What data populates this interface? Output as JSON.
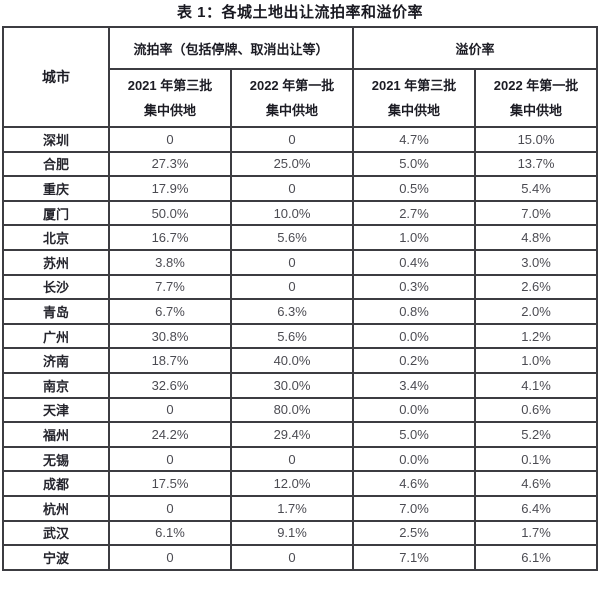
{
  "title": "表 1：各城土地出让流拍率和溢价率",
  "colors": {
    "border": "#3c3c41",
    "header_text": "#1c1c24",
    "value_text": "#4b4b52",
    "background": "#ffffff"
  },
  "table": {
    "corner_header": "城市",
    "groups": [
      {
        "label": "流拍率（包括停牌、取消出让等）"
      },
      {
        "label": "溢价率"
      }
    ],
    "sub_headers": [
      {
        "line1": "2021 年第三批",
        "line2": "集中供地"
      },
      {
        "line1": "2022 年第一批",
        "line2": "集中供地"
      },
      {
        "line1": "2021 年第三批",
        "line2": "集中供地"
      },
      {
        "line1": "2022 年第一批",
        "line2": "集中供地"
      }
    ],
    "rows": [
      {
        "city": "深圳",
        "values": [
          "0",
          "0",
          "4.7%",
          "15.0%"
        ]
      },
      {
        "city": "合肥",
        "values": [
          "27.3%",
          "25.0%",
          "5.0%",
          "13.7%"
        ]
      },
      {
        "city": "重庆",
        "values": [
          "17.9%",
          "0",
          "0.5%",
          "5.4%"
        ]
      },
      {
        "city": "厦门",
        "values": [
          "50.0%",
          "10.0%",
          "2.7%",
          "7.0%"
        ]
      },
      {
        "city": "北京",
        "values": [
          "16.7%",
          "5.6%",
          "1.0%",
          "4.8%"
        ]
      },
      {
        "city": "苏州",
        "values": [
          "3.8%",
          "0",
          "0.4%",
          "3.0%"
        ]
      },
      {
        "city": "长沙",
        "values": [
          "7.7%",
          "0",
          "0.3%",
          "2.6%"
        ]
      },
      {
        "city": "青岛",
        "values": [
          "6.7%",
          "6.3%",
          "0.8%",
          "2.0%"
        ]
      },
      {
        "city": "广州",
        "values": [
          "30.8%",
          "5.6%",
          "0.0%",
          "1.2%"
        ]
      },
      {
        "city": "济南",
        "values": [
          "18.7%",
          "40.0%",
          "0.2%",
          "1.0%"
        ]
      },
      {
        "city": "南京",
        "values": [
          "32.6%",
          "30.0%",
          "3.4%",
          "4.1%"
        ]
      },
      {
        "city": "天津",
        "values": [
          "0",
          "80.0%",
          "0.0%",
          "0.6%"
        ]
      },
      {
        "city": "福州",
        "values": [
          "24.2%",
          "29.4%",
          "5.0%",
          "5.2%"
        ]
      },
      {
        "city": "无锡",
        "values": [
          "0",
          "0",
          "0.0%",
          "0.1%"
        ]
      },
      {
        "city": "成都",
        "values": [
          "17.5%",
          "12.0%",
          "4.6%",
          "4.6%"
        ]
      },
      {
        "city": "杭州",
        "values": [
          "0",
          "1.7%",
          "7.0%",
          "6.4%"
        ]
      },
      {
        "city": "武汉",
        "values": [
          "6.1%",
          "9.1%",
          "2.5%",
          "1.7%"
        ]
      },
      {
        "city": "宁波",
        "values": [
          "0",
          "0",
          "7.1%",
          "6.1%"
        ]
      }
    ]
  },
  "chart_data": {
    "type": "table",
    "title": "表 1：各城土地出让流拍率和溢价率",
    "columns": [
      "城市",
      "流拍率 2021 年第三批集中供地",
      "流拍率 2022 年第一批集中供地",
      "溢价率 2021 年第三批集中供地",
      "溢价率 2022 年第一批集中供地"
    ]
  }
}
